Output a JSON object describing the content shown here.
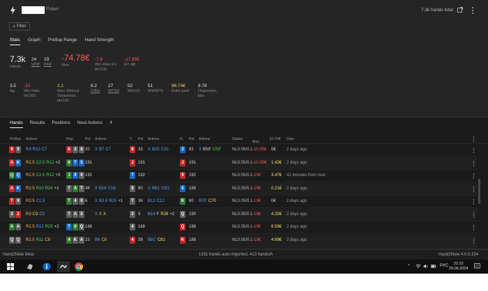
{
  "window": {
    "title": "Poker",
    "hands_total": "7.3k hands total"
  },
  "filter": {
    "label": "Filter"
  },
  "stats_tabs": [
    "Stats",
    "Graph",
    "Preflop Range",
    "Hand Strength"
  ],
  "stats_row1": [
    {
      "value": "7.3k",
      "label": "Hands",
      "color": "#f0f0f0"
    },
    {
      "value": "24",
      "label": "VPIP",
      "color": "#e3e3e3"
    },
    {
      "value": "19",
      "label": "PFR",
      "color": "#e3e3e3"
    },
    {
      "value": "-74.78€",
      "label": "Won",
      "color": "#ff5a5a"
    },
    {
      "value": "-7.8",
      "label": "Win Rate EV, bb/100",
      "color": "#ff5a5a"
    },
    {
      "value": "-17.85€",
      "label": "EV diff",
      "color": "#ff5a5a"
    }
  ],
  "stats_row2": [
    {
      "value": "3.5",
      "label": "Ag.",
      "color": "#e3e3e3"
    },
    {
      "value": "-10",
      "label": "Win Rate, bb/100",
      "color": "#ff5a5a"
    },
    {
      "value": "2.1",
      "label": "Won Without Showdown, bb/100",
      "color": "#ffd35a"
    },
    {
      "value": "8.2",
      "label": "3-Bet",
      "color": "#e3e3e3"
    },
    {
      "value": "27",
      "label": "WTSD",
      "color": "#e3e3e3"
    },
    {
      "value": "52",
      "label": "W%SD",
      "color": "#e3e3e3"
    },
    {
      "value": "51",
      "label": "WWSF%",
      "color": "#e3e3e3"
    },
    {
      "value": "96.74€",
      "label": "Rake paid",
      "color": "#ffd35a"
    },
    {
      "value": "9.78",
      "label": "Dispersion, bbs",
      "color": "#e3e3e3"
    }
  ],
  "panel_tabs": [
    "Hands",
    "Results",
    "Positions",
    "Next Actions"
  ],
  "columns": {
    "preflop": "Preflop",
    "actions": "Actions",
    "flop": "Flop",
    "pot": "Pot",
    "turn": "T..",
    "river": "R..",
    "stakes": "Stakes",
    "won": "Won",
    "evdiff": "EV Diff",
    "date": "Date"
  },
  "hands": [
    {
      "hole": [
        [
          "9",
          "red"
        ],
        [
          "9",
          "grey"
        ]
      ],
      "pf": [
        [
          "R3",
          "blue"
        ],
        [
          "R10",
          "blue"
        ],
        [
          "C7",
          "blue"
        ]
      ],
      "flop": [
        [
          "A",
          "red"
        ],
        [
          "2",
          "grey"
        ],
        [
          "8",
          "grey"
        ]
      ],
      "flop_pot": "20",
      "fa": [
        [
          "X",
          "blue"
        ],
        [
          "B7",
          "blue"
        ],
        [
          "C7",
          "blue"
        ]
      ],
      "turn": [
        "8",
        "red"
      ],
      "turn_pot": "33",
      "ta": [
        [
          "X",
          "blue"
        ],
        [
          "B25",
          "blue"
        ],
        [
          "C25",
          "blue"
        ]
      ],
      "river": [
        "2",
        "blue"
      ],
      "river_pot": "83",
      "ra": [
        [
          "X",
          "blue"
        ],
        [
          "B59'",
          "white"
        ],
        [
          "C59'",
          "green"
        ]
      ],
      "stakes": "NL0.05/0.1",
      "won": "-10.05€",
      "won_neg": true,
      "ev": "0€",
      "ev_pos": false,
      "date": "2 days ago"
    },
    {
      "hole": [
        [
          "A",
          "red"
        ],
        [
          "K",
          "blue"
        ]
      ],
      "pf": [
        [
          "R2.5",
          "orange"
        ],
        [
          "C2.5",
          "green"
        ],
        [
          "R12",
          "green"
        ],
        [
          "+2",
          "white"
        ]
      ],
      "flop": [
        [
          "6",
          "green"
        ],
        [
          "T",
          "blue"
        ],
        [
          "5",
          "blue"
        ]
      ],
      "flop_pot": "191",
      "fa": [],
      "turn": [
        "J",
        "red"
      ],
      "turn_pot": "191",
      "ta": [],
      "river": [
        "J",
        "red"
      ],
      "river_pot": "191",
      "ra": [],
      "stakes": "NL0.05/0.1",
      "won": "-10.05€",
      "won_neg": true,
      "ev": "1.42€",
      "ev_pos": true,
      "date": "2 days ago"
    },
    {
      "hole": [
        [
          "Q",
          "green"
        ],
        [
          "Q",
          "blue"
        ]
      ],
      "pf": [
        [
          "R2.5",
          "orange"
        ],
        [
          "C2.5",
          "green"
        ],
        [
          "R12",
          "green"
        ],
        [
          "+3",
          "white"
        ]
      ],
      "flop": [
        [
          "J",
          "green"
        ],
        [
          "9",
          "blue"
        ],
        [
          "9",
          "grey"
        ]
      ],
      "flop_pot": "192",
      "fa": [],
      "turn": [
        "T",
        "blue"
      ],
      "turn_pot": "192",
      "ta": [],
      "river": [
        "9",
        "red"
      ],
      "river_pot": "192",
      "ra": [],
      "stakes": "NL0.05/0.1",
      "won": "-10€",
      "won_neg": true,
      "ev": "3.47€",
      "ev_pos": true,
      "date": "41 minutes from now"
    },
    {
      "hole": [
        [
          "A",
          "red"
        ],
        [
          "K",
          "blue"
        ]
      ],
      "pf": [
        [
          "R2.5",
          "orange"
        ],
        [
          "R10",
          "green"
        ],
        [
          "R24",
          "green"
        ],
        [
          "+1",
          "white"
        ]
      ],
      "flop": [
        [
          "T",
          "grey"
        ],
        [
          "A",
          "green"
        ],
        [
          "T",
          "grey"
        ]
      ],
      "flop_pot": "48",
      "fa": [
        [
          "X",
          "blue"
        ],
        [
          "B16",
          "blue"
        ],
        [
          "C16",
          "blue"
        ]
      ],
      "turn": [
        "8",
        "grey"
      ],
      "turn_pot": "80",
      "ta": [
        [
          "X",
          "blue"
        ],
        [
          "B61'",
          "blue"
        ],
        [
          "C61'",
          "blue"
        ]
      ],
      "river": [
        "5",
        "blue"
      ],
      "river_pot": "188",
      "ra": [],
      "stakes": "NL0.05/0.1",
      "won": "-10€",
      "won_neg": true,
      "ev": "0.21€",
      "ev_pos": true,
      "date": "2 days ago"
    },
    {
      "hole": [
        [
          "T",
          "red"
        ],
        [
          "9",
          "grey"
        ]
      ],
      "pf": [
        [
          "R2.5",
          "orange"
        ],
        [
          "C1.5",
          "blue"
        ]
      ],
      "flop": [
        [
          "T",
          "green"
        ],
        [
          "4",
          "grey"
        ],
        [
          "9",
          "grey"
        ]
      ],
      "flop_pot": "6",
      "fa": [
        [
          "X",
          "blue"
        ],
        [
          "B3.6",
          "blue"
        ],
        [
          "R15",
          "blue"
        ],
        [
          "+1",
          "white"
        ]
      ],
      "turn": [
        "T",
        "grey"
      ],
      "turn_pot": "36",
      "ta": [
        [
          "B12",
          "blue"
        ],
        [
          "C12",
          "blue"
        ]
      ],
      "river": [
        "K",
        "green"
      ],
      "river_pot": "60",
      "ra": [
        [
          "B70'",
          "blue"
        ],
        [
          "C70",
          "yellow"
        ]
      ],
      "stakes": "NL0.05/0.1",
      "won": "-10€",
      "won_neg": true,
      "ev": "0€",
      "ev_pos": false,
      "date": "2 days ago"
    },
    {
      "hole": [
        [
          "2",
          "grey"
        ],
        [
          "2",
          "red"
        ]
      ],
      "pf": [
        [
          "R3",
          "orange"
        ],
        [
          "C3",
          "yellow"
        ],
        [
          "C2",
          "blue"
        ]
      ],
      "flop": [
        [
          "T",
          "grey"
        ],
        [
          "A",
          "grey"
        ],
        [
          "5",
          "grey"
        ]
      ],
      "flop_pot": "",
      "fa": [
        [
          "X",
          "blue"
        ],
        [
          "X",
          "orange"
        ],
        [
          "X",
          "yellow"
        ]
      ],
      "turn": [
        "3",
        "grey"
      ],
      "turn_pot": "9",
      "ta": [
        [
          "B14",
          "blue"
        ],
        [
          "F",
          "white"
        ],
        [
          "R28",
          "yellow"
        ],
        [
          "+2",
          "white"
        ]
      ],
      "river": [
        "Q",
        "grey"
      ],
      "river_pot": "190",
      "ra": [],
      "stakes": "NL0.05/0.1",
      "won": "-10€",
      "won_neg": true,
      "ev": "4.32€",
      "ev_pos": true,
      "date": "2 days ago"
    },
    {
      "hole": [
        [
          "A",
          "green"
        ],
        [
          "A",
          "grey"
        ]
      ],
      "pf": [
        [
          "R2.5",
          "orange"
        ],
        [
          "R12",
          "blue"
        ],
        [
          "R25",
          "green"
        ],
        [
          "+2",
          "white"
        ]
      ],
      "flop": [
        [
          "T",
          "blue"
        ],
        [
          "9",
          "green"
        ],
        [
          "Q",
          "grey"
        ]
      ],
      "flop_pot": "188",
      "fa": [],
      "turn": [
        "4",
        "grey"
      ],
      "turn_pot": "188",
      "ta": [],
      "river": [
        "Q",
        "red"
      ],
      "river_pot": "188",
      "ra": [],
      "stakes": "NL0.05/0.1",
      "won": "-10€",
      "won_neg": true,
      "ev": "8.59€",
      "ev_pos": true,
      "date": "2 days ago"
    },
    {
      "hole": [
        [
          "Q",
          "grey"
        ],
        [
          "Q",
          "grey"
        ]
      ],
      "pf": [
        [
          "R2.5",
          "orange"
        ],
        [
          "R11",
          "green"
        ],
        [
          "C8",
          "orange"
        ]
      ],
      "flop": [
        [
          "4",
          "green"
        ],
        [
          "K",
          "grey"
        ],
        [
          "A",
          "grey"
        ]
      ],
      "flop_pot": "23",
      "fa": [
        [
          "B8",
          "blue"
        ],
        [
          "C8",
          "orange"
        ]
      ],
      "turn": [
        "4",
        "red"
      ],
      "turn_pot": "39",
      "ta": [
        [
          "B81'",
          "blue"
        ],
        [
          "C81",
          "yellow"
        ]
      ],
      "river": [
        "K",
        "red"
      ],
      "river_pot": "188",
      "ra": [],
      "stakes": "NL0.05/0.1",
      "won": "-10€",
      "won_neg": true,
      "ev": "4.69€",
      "ev_pos": true,
      "date": "2 days ago"
    }
  ],
  "statusbar": {
    "left": "Hand2Note Beta",
    "center": "1331 hands auto imported, 413 hands/h",
    "right": "Hand2Note 4.0.0.154"
  },
  "taskbar": {
    "lang": "РУС",
    "time": "21:22",
    "date": "29.06.2024"
  }
}
